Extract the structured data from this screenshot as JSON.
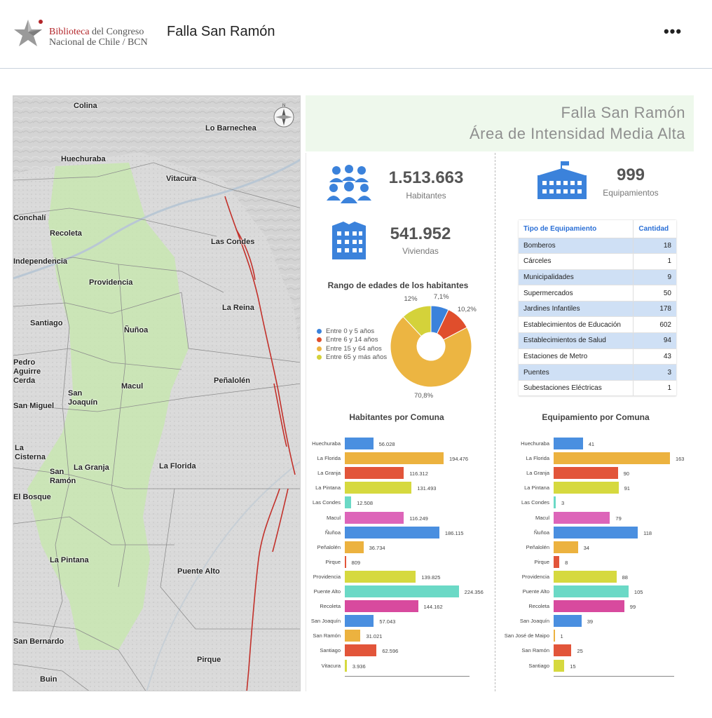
{
  "header": {
    "logo_line1_red": "Biblioteca",
    "logo_line1_rest": " del Congreso",
    "logo_line2": "Nacional de Chile / BCN",
    "title": "Falla San Ramón",
    "more_icon": "more-horizontal-icon",
    "more_label": "•••"
  },
  "map": {
    "labels": [
      "Colina",
      "Lo Barnechea",
      "Huechuraba",
      "Vitacura",
      "Conchalí",
      "Recoleta",
      "Las Condes",
      "Independencia",
      "Providencia",
      "La Reina",
      "Santiago",
      "Ñuñoa",
      "Pedro\nAguirre\nCerda",
      "San\nJoaquín",
      "Macul",
      "Peñalolén",
      "San Miguel",
      "La\nCisterna",
      "San\nRamón",
      "La Granja",
      "La Florida",
      "El Bosque",
      "La Pintana",
      "Puente Alto",
      "San Bernardo",
      "Pirque",
      "Buin"
    ],
    "compass_icon": "compass-icon"
  },
  "title_box": {
    "line1": "Falla San Ramón",
    "line2": "Área de Intensidad Media Alta"
  },
  "kpis": {
    "habitantes_value": "1.513.663",
    "habitantes_label": "Habitantes",
    "habitantes_icon": "people-group-icon",
    "viviendas_value": "541.952",
    "viviendas_label": "Viviendas",
    "viviendas_icon": "building-icon",
    "equip_value": "999",
    "equip_label": "Equipamientos",
    "equip_icon": "institution-building-icon"
  },
  "equip_table": {
    "col1": "Tipo de Equipamiento",
    "col2": "Cantidad",
    "rows": [
      {
        "name": "Bomberos",
        "qty": "18"
      },
      {
        "name": "Cárceles",
        "qty": "1"
      },
      {
        "name": "Municipalidades",
        "qty": "9"
      },
      {
        "name": "Supermercados",
        "qty": "50"
      },
      {
        "name": "Jardines Infantiles",
        "qty": "178"
      },
      {
        "name": "Establecimientos de Educación",
        "qty": "602"
      },
      {
        "name": "Establecimientos de Salud",
        "qty": "94"
      },
      {
        "name": "Estaciones de Metro",
        "qty": "43"
      },
      {
        "name": "Puentes",
        "qty": "3"
      },
      {
        "name": "Subestaciones Eléctricas",
        "qty": "1"
      }
    ]
  },
  "chart_data": [
    {
      "type": "pie",
      "title": "Rango de edades de los habitantes",
      "categories": [
        "Entre 0 y 5 años",
        "Entre 6 y 14 años",
        "Entre 15 y 64 años",
        "Entre 65 y más años"
      ],
      "values": [
        7.1,
        10.2,
        70.8,
        12
      ],
      "labels": [
        "7,1%",
        "10,2%",
        "70,8%",
        "12%"
      ],
      "colors": [
        "#3b82db",
        "#e04e2c",
        "#ecb542",
        "#d4d23a"
      ],
      "legend": "left"
    },
    {
      "type": "bar",
      "orientation": "horizontal",
      "title": "Habitantes por Comuna",
      "categories": [
        "Huechuraba",
        "La Florida",
        "La Granja",
        "La Pintana",
        "Las Condes",
        "Macul",
        "Ñuñoa",
        "Peñalolén",
        "Pirque",
        "Providencia",
        "Puente Alto",
        "Recoleta",
        "San Joaquín",
        "San Ramón",
        "Santiago",
        "Vitacura"
      ],
      "values": [
        56028,
        194476,
        116312,
        131493,
        12508,
        116249,
        186115,
        36734,
        809,
        139825,
        224356,
        144162,
        57043,
        31021,
        62596,
        3936
      ],
      "labels": [
        "56.028",
        "194.476",
        "116.312",
        "131.493",
        "12.508",
        "116.249",
        "186.115",
        "36.734",
        "809",
        "139.825",
        "224.356",
        "144.162",
        "57.043",
        "31.021",
        "62.596",
        "3.936"
      ],
      "colors": [
        "#4a8fe0",
        "#ecb23f",
        "#e2553a",
        "#d6d93f",
        "#6bd9c6",
        "#dd65b9",
        "#4a8fe0",
        "#ecb23f",
        "#e2553a",
        "#d6d93f",
        "#6bd9c6",
        "#d84a9e",
        "#4a8fe0",
        "#ecb23f",
        "#e2553a",
        "#d6d93f"
      ],
      "xlim": [
        0,
        240000
      ]
    },
    {
      "type": "bar",
      "orientation": "horizontal",
      "title": "Equipamiento por Comuna",
      "categories": [
        "Huechuraba",
        "La Florida",
        "La Granja",
        "La Pintana",
        "Las Condes",
        "Macul",
        "Ñuñoa",
        "Peñalolén",
        "Pirque",
        "Providencia",
        "Puente Alto",
        "Recoleta",
        "San Joaquín",
        "San José de Maipo",
        "San Ramón",
        "Santiago"
      ],
      "values": [
        41,
        163,
        90,
        91,
        3,
        79,
        118,
        34,
        8,
        88,
        105,
        99,
        39,
        1,
        25,
        15
      ],
      "labels": [
        "41",
        "163",
        "90",
        "91",
        "3",
        "79",
        "118",
        "34",
        "8",
        "88",
        "105",
        "99",
        "39",
        "1",
        "25",
        "15"
      ],
      "colors": [
        "#4a8fe0",
        "#ecb23f",
        "#e2553a",
        "#d6d93f",
        "#6bd9c6",
        "#dd65b9",
        "#4a8fe0",
        "#ecb23f",
        "#e2553a",
        "#d6d93f",
        "#6bd9c6",
        "#d84a9e",
        "#4a8fe0",
        "#ecb23f",
        "#e2553a",
        "#d6d93f"
      ],
      "xlim": [
        0,
        165
      ]
    }
  ]
}
